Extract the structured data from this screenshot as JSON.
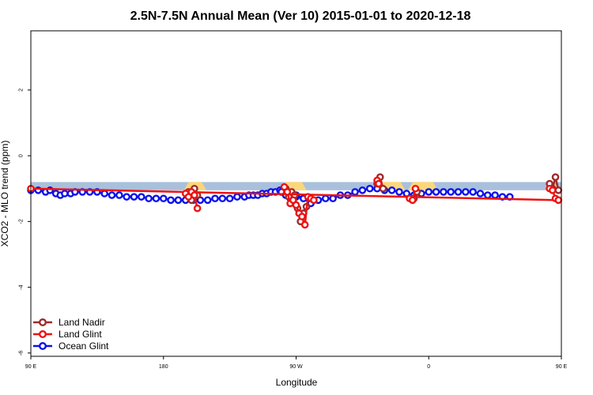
{
  "chart_data": {
    "type": "line",
    "title": "2.5N-7.5N Annual Mean (Ver 10)   2015-01-01 to 2020-12-18",
    "xlabel": "Longitude",
    "ylabel": "XCO2 - MLO trend (ppm)",
    "xlim": [
      90,
      450
    ],
    "ylim": [
      -6.1,
      3.8
    ],
    "x_ticks": [
      {
        "value": 90,
        "label": "90 E"
      },
      {
        "value": 180,
        "label": "180"
      },
      {
        "value": 270,
        "label": "90 W"
      },
      {
        "value": 360,
        "label": "0"
      },
      {
        "value": 450,
        "label": "90 E"
      }
    ],
    "x_ticks_extra": [
      {
        "value": 540,
        "label": "180"
      }
    ],
    "y_ticks": [
      {
        "value": 2,
        "label": "2"
      },
      {
        "value": 0,
        "label": "0"
      },
      {
        "value": -2,
        "label": "-2"
      },
      {
        "value": -4,
        "label": "-4"
      },
      {
        "value": -6,
        "label": "-6"
      }
    ],
    "grid": false,
    "legend_position": "bottom-left",
    "surface_bar": {
      "y_top": -0.8,
      "y_bottom": -1.05,
      "ocean_color": "#a9c0dc",
      "land_color": "#fad77a",
      "land_segments": [
        [
          82,
          86
        ],
        [
          196,
          207
        ],
        [
          262,
          275
        ],
        [
          325,
          342
        ],
        [
          348,
          364
        ]
      ]
    },
    "series": [
      {
        "name": "Land Nadir",
        "color": "#9e2a2b",
        "segments": [
          [
            [
              82,
              -0.85
            ],
            [
              84,
              -1.0
            ],
            [
              86,
              -0.65
            ],
            [
              88,
              -1.05
            ]
          ],
          [
            [
              197,
              -1.1
            ],
            [
              199,
              -1.35
            ],
            [
              201,
              -1.0
            ],
            [
              203,
              -1.2
            ]
          ],
          [
            [
              263,
              -1.0
            ],
            [
              265,
              -1.25
            ],
            [
              267,
              -1.1
            ],
            [
              269,
              -1.2
            ],
            [
              271,
              -1.6
            ],
            [
              273,
              -2.0
            ],
            [
              275,
              -1.75
            ],
            [
              277,
              -1.55
            ]
          ],
          [
            [
              325,
              -0.85
            ],
            [
              327,
              -0.65
            ],
            [
              329,
              -1.0
            ]
          ],
          [
            [
              350,
              -1.3
            ],
            [
              352,
              -1.1
            ]
          ]
        ]
      },
      {
        "name": "Land Glint",
        "color": "#ee1111",
        "segments": [
          [
            [
              82,
              -1.0
            ],
            [
              84,
              -1.05
            ],
            [
              86,
              -1.3
            ],
            [
              88,
              -1.35
            ],
            [
              90,
              -1.0
            ]
          ],
          [
            [
              195,
              -1.15
            ],
            [
              197,
              -1.25
            ],
            [
              199,
              -1.1
            ],
            [
              201,
              -1.2
            ],
            [
              203,
              -1.6
            ]
          ],
          [
            [
              262,
              -0.95
            ],
            [
              264,
              -1.1
            ],
            [
              266,
              -1.45
            ],
            [
              268,
              -1.35
            ],
            [
              270,
              -1.5
            ],
            [
              272,
              -1.75
            ],
            [
              274,
              -1.85
            ],
            [
              276,
              -2.1
            ],
            [
              278,
              -1.25
            ],
            [
              280,
              -1.3
            ],
            [
              282,
              -1.35
            ]
          ],
          [
            [
              325,
              -0.75
            ],
            [
              326,
              -0.85
            ]
          ],
          [
            [
              347,
              -1.3
            ],
            [
              349,
              -1.35
            ],
            [
              351,
              -1.0
            ]
          ]
        ]
      },
      {
        "name": "Ocean Glint",
        "color": "#0a12ea",
        "segments": [
          [
            [
              90,
              -1.05
            ],
            [
              95,
              -1.05
            ],
            [
              100,
              -1.1
            ],
            [
              103,
              -1.05
            ],
            [
              107,
              -1.15
            ],
            [
              110,
              -1.2
            ],
            [
              113,
              -1.15
            ],
            [
              117,
              -1.15
            ],
            [
              120,
              -1.1
            ],
            [
              125,
              -1.1
            ],
            [
              130,
              -1.1
            ],
            [
              135,
              -1.1
            ],
            [
              140,
              -1.15
            ],
            [
              145,
              -1.2
            ],
            [
              150,
              -1.2
            ],
            [
              155,
              -1.25
            ],
            [
              160,
              -1.25
            ],
            [
              165,
              -1.25
            ],
            [
              170,
              -1.3
            ],
            [
              175,
              -1.3
            ],
            [
              180,
              -1.3
            ],
            [
              185,
              -1.35
            ],
            [
              190,
              -1.35
            ],
            [
              195,
              -1.35
            ],
            [
              200,
              -1.35
            ],
            [
              205,
              -1.35
            ],
            [
              210,
              -1.35
            ],
            [
              215,
              -1.3
            ],
            [
              220,
              -1.3
            ],
            [
              225,
              -1.3
            ],
            [
              230,
              -1.25
            ],
            [
              235,
              -1.25
            ],
            [
              238,
              -1.2
            ],
            [
              241,
              -1.2
            ],
            [
              244,
              -1.2
            ],
            [
              247,
              -1.15
            ],
            [
              250,
              -1.15
            ],
            [
              253,
              -1.1
            ],
            [
              256,
              -1.1
            ],
            [
              259,
              -1.05
            ]
          ],
          [
            [
              260,
              -1.1
            ],
            [
              263,
              -1.2
            ],
            [
              266,
              -1.3
            ],
            [
              270,
              -1.25
            ]
          ],
          [
            [
              270,
              -1.2
            ],
            [
              275,
              -1.3
            ],
            [
              280,
              -1.45
            ],
            [
              285,
              -1.35
            ],
            [
              290,
              -1.3
            ],
            [
              295,
              -1.3
            ],
            [
              300,
              -1.2
            ],
            [
              305,
              -1.2
            ],
            [
              310,
              -1.1
            ],
            [
              315,
              -1.05
            ],
            [
              320,
              -1.0
            ],
            [
              325,
              -1.0
            ],
            [
              330,
              -1.05
            ],
            [
              335,
              -1.05
            ],
            [
              340,
              -1.1
            ],
            [
              345,
              -1.15
            ],
            [
              350,
              -1.2
            ],
            [
              355,
              -1.15
            ],
            [
              360,
              -1.1
            ],
            [
              365,
              -1.1
            ],
            [
              370,
              -1.1
            ],
            [
              375,
              -1.1
            ],
            [
              380,
              -1.1
            ],
            [
              385,
              -1.1
            ],
            [
              390,
              -1.1
            ],
            [
              395,
              -1.15
            ],
            [
              400,
              -1.2
            ],
            [
              405,
              -1.2
            ],
            [
              410,
              -1.25
            ],
            [
              415,
              -1.25
            ]
          ]
        ]
      }
    ]
  },
  "legend": [
    {
      "label": "Land Nadir",
      "color": "#9e2a2b"
    },
    {
      "label": "Land Glint",
      "color": "#ee1111"
    },
    {
      "label": "Ocean Glint",
      "color": "#0a12ea"
    }
  ]
}
